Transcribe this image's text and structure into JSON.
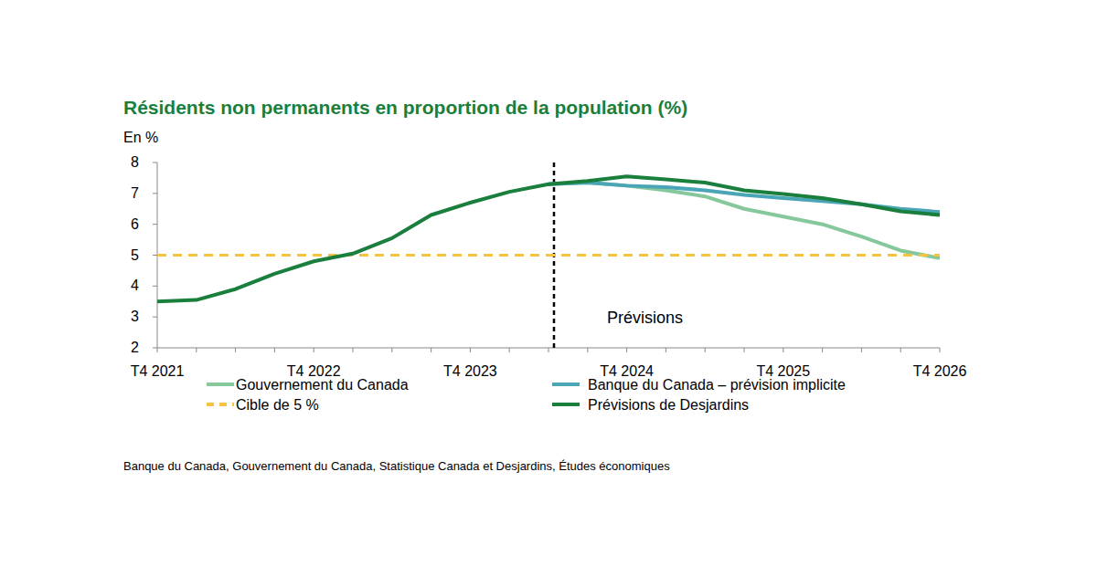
{
  "chart_data": {
    "type": "line",
    "title": "Résidents non permanents en proportion de la population (%)",
    "y_label": "En %",
    "source": "Banque du Canada, Gouvernement du Canada, Statistique Canada et Desjardins, Études économiques",
    "annotations": [
      {
        "text": "Prévisions",
        "at": 10
      }
    ],
    "categories": [
      "T4 2021",
      null,
      null,
      null,
      "T4 2022",
      null,
      null,
      null,
      "T4 2023",
      null,
      null,
      null,
      "T4 2024",
      null,
      null,
      null,
      "T4 2025",
      null,
      null,
      null,
      "T4 2026"
    ],
    "ylim": [
      2,
      8
    ],
    "yticks": [
      2,
      3,
      4,
      5,
      6,
      7,
      8
    ],
    "grid": false,
    "legend": "bottom",
    "series": [
      {
        "name": "Gouvernement du Canada",
        "color": "#86c79b",
        "line_style": "solid",
        "values": [
          null,
          null,
          null,
          null,
          null,
          null,
          null,
          null,
          null,
          null,
          7.3,
          7.35,
          7.25,
          7.1,
          6.9,
          6.5,
          6.25,
          6.0,
          5.6,
          5.15,
          4.9
        ]
      },
      {
        "name": "Banque du Canada – prévision implicite",
        "color": "#4aa6b7",
        "line_style": "solid",
        "values": [
          null,
          null,
          null,
          null,
          null,
          null,
          null,
          null,
          null,
          null,
          7.3,
          7.35,
          7.25,
          7.2,
          7.1,
          6.95,
          6.85,
          6.75,
          6.65,
          6.5,
          6.4
        ]
      },
      {
        "name": "Cible de 5 %",
        "color": "#f5c242",
        "line_style": "dashed",
        "values": [
          5,
          5,
          5,
          5,
          5,
          5,
          5,
          5,
          5,
          5,
          5,
          5,
          5,
          5,
          5,
          5,
          5,
          5,
          5,
          5,
          5
        ]
      },
      {
        "name": "Prévisions de Desjardins",
        "color": "#1a7f3c",
        "line_style": "solid",
        "values": [
          3.5,
          3.55,
          3.9,
          4.4,
          4.8,
          5.05,
          5.55,
          6.3,
          6.7,
          7.05,
          7.3,
          7.4,
          7.55,
          7.45,
          7.35,
          7.1,
          6.98,
          6.85,
          6.65,
          6.42,
          6.3
        ]
      }
    ]
  }
}
